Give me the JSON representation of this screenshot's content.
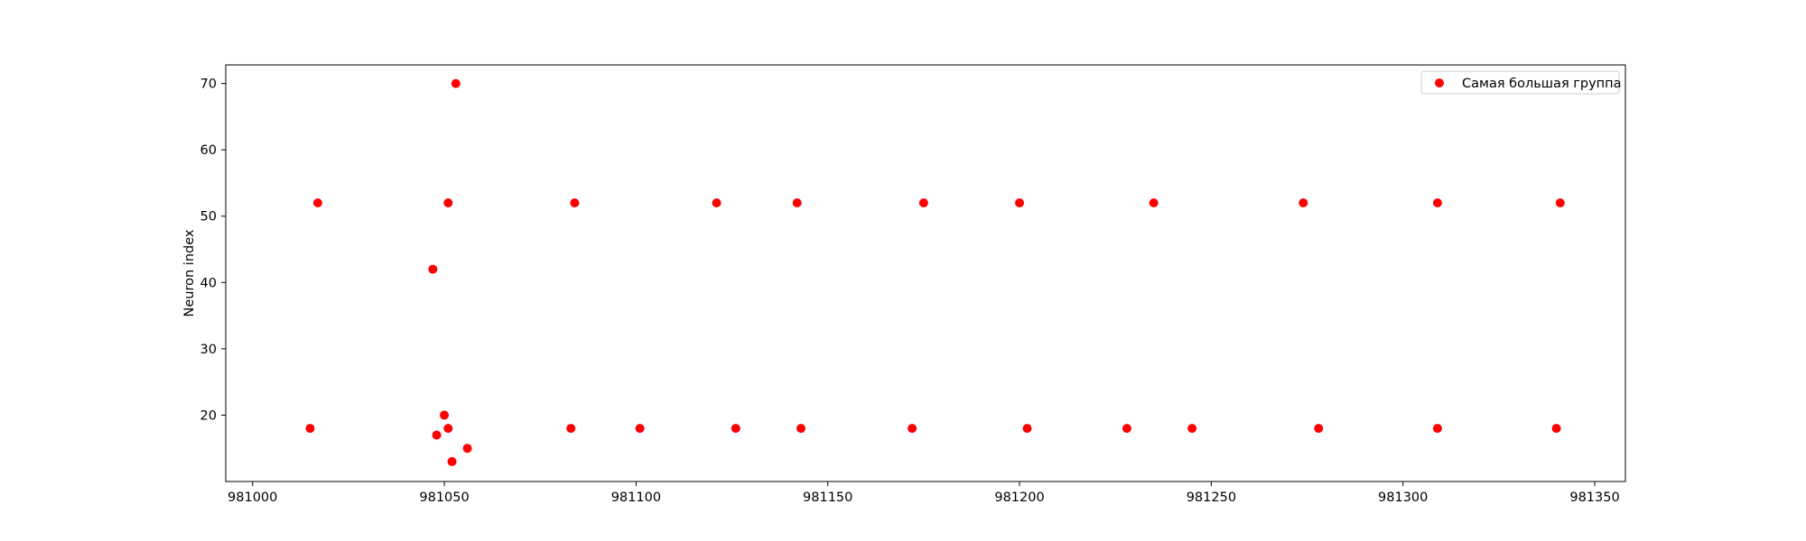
{
  "chart_data": {
    "type": "scatter",
    "title": "",
    "xlabel": "",
    "ylabel": "Neuron index",
    "xlim": [
      980993,
      981358
    ],
    "ylim": [
      10.0,
      72.8
    ],
    "xticks": [
      "981000",
      "981050",
      "981100",
      "981150",
      "981200",
      "981250",
      "981300",
      "981350"
    ],
    "yticks": [
      "20",
      "30",
      "40",
      "50",
      "60",
      "70"
    ],
    "grid": false,
    "legend_position": "top-right",
    "series": [
      {
        "name": "Самая большая группа",
        "color": "#ff0000",
        "points": [
          {
            "x": 981015,
            "y": 18
          },
          {
            "x": 981017,
            "y": 52
          },
          {
            "x": 981047,
            "y": 42
          },
          {
            "x": 981048,
            "y": 17
          },
          {
            "x": 981050,
            "y": 20
          },
          {
            "x": 981051,
            "y": 52
          },
          {
            "x": 981051,
            "y": 18
          },
          {
            "x": 981052,
            "y": 13
          },
          {
            "x": 981053,
            "y": 70
          },
          {
            "x": 981056,
            "y": 15
          },
          {
            "x": 981083,
            "y": 18
          },
          {
            "x": 981084,
            "y": 52
          },
          {
            "x": 981101,
            "y": 18
          },
          {
            "x": 981121,
            "y": 52
          },
          {
            "x": 981126,
            "y": 18
          },
          {
            "x": 981142,
            "y": 52
          },
          {
            "x": 981143,
            "y": 18
          },
          {
            "x": 981172,
            "y": 18
          },
          {
            "x": 981175,
            "y": 52
          },
          {
            "x": 981200,
            "y": 52
          },
          {
            "x": 981202,
            "y": 18
          },
          {
            "x": 981228,
            "y": 18
          },
          {
            "x": 981235,
            "y": 52
          },
          {
            "x": 981245,
            "y": 18
          },
          {
            "x": 981274,
            "y": 52
          },
          {
            "x": 981278,
            "y": 18
          },
          {
            "x": 981309,
            "y": 52
          },
          {
            "x": 981309,
            "y": 18
          },
          {
            "x": 981340,
            "y": 18
          },
          {
            "x": 981341,
            "y": 52
          }
        ]
      }
    ]
  }
}
